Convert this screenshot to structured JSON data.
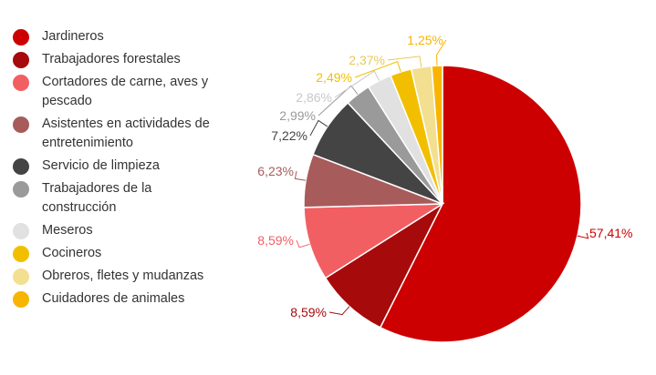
{
  "chart_data": {
    "type": "pie",
    "series": [
      {
        "name": "Jardineros",
        "value": 57.41,
        "label": "57,41%",
        "color": "#cc0000"
      },
      {
        "name": "Trabajadores forestales",
        "value": 8.59,
        "label": "8,59%",
        "color": "#a60a0a"
      },
      {
        "name": "Cortadores de carne, aves y pescado",
        "value": 8.59,
        "label": "8,59%",
        "color": "#f25f63"
      },
      {
        "name": "Asistentes en actividades de entretenimiento",
        "value": 6.23,
        "label": "6,23%",
        "color": "#a85b5b"
      },
      {
        "name": "Servicio de limpieza",
        "value": 7.22,
        "label": "7,22%",
        "color": "#444444"
      },
      {
        "name": "Trabajadores de la construcción",
        "value": 2.99,
        "label": "2,99%",
        "color": "#9a9a9a"
      },
      {
        "name": "Meseros",
        "value": 2.86,
        "label": "2,86%",
        "color": "#e1e1e1"
      },
      {
        "name": "Cocineros",
        "value": 2.49,
        "label": "2,49%",
        "color": "#f2bf00"
      },
      {
        "name": "Obreros, fletes y mudanzas",
        "value": 2.37,
        "label": "2,37%",
        "color": "#f3df90"
      },
      {
        "name": "Cuidadores de animales",
        "value": 1.25,
        "label": "1,25%",
        "color": "#f7b500"
      }
    ],
    "legend_position": "left"
  },
  "legend": {
    "items": [
      {
        "label": "Jardineros",
        "color": "#cc0000"
      },
      {
        "label": "Trabajadores forestales",
        "color": "#a60a0a"
      },
      {
        "label": "Cortadores de carne, aves y pescado",
        "color": "#f25f63"
      },
      {
        "label": "Asistentes en actividades de entretenimiento",
        "color": "#a85b5b"
      },
      {
        "label": "Servicio de limpieza",
        "color": "#444444"
      },
      {
        "label": "Trabajadores de la construcción",
        "color": "#9a9a9a"
      },
      {
        "label": "Meseros",
        "color": "#e1e1e1"
      },
      {
        "label": "Cocineros",
        "color": "#f2bf00"
      },
      {
        "label": "Obreros, fletes y mudanzas",
        "color": "#f3df90"
      },
      {
        "label": "Cuidadores de animales",
        "color": "#f7b500"
      }
    ]
  }
}
